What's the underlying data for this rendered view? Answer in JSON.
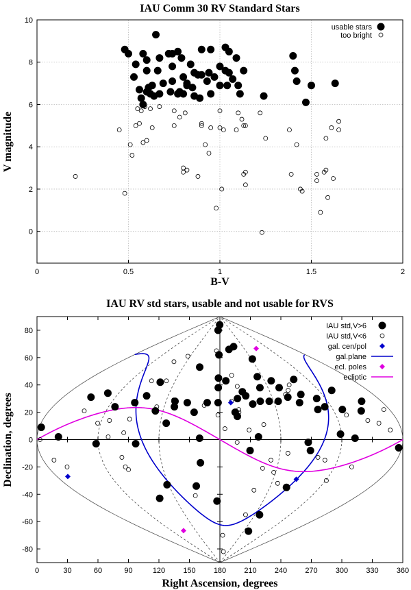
{
  "chart_data": [
    {
      "type": "scatter",
      "title": "IAU Comm 30 RV Standard Stars",
      "xlabel": "B-V",
      "ylabel": "V magnitude",
      "xlim": [
        0,
        2
      ],
      "ylim": [
        -1.5,
        10
      ],
      "xticks": [
        "0",
        "0.5",
        "1",
        "1.5",
        "2"
      ],
      "yticks": [
        "0",
        "2",
        "4",
        "6",
        "8",
        "10"
      ],
      "grid": true,
      "legend_position": "top-right",
      "series": [
        {
          "name": "usable stars",
          "marker": "filled-circle",
          "points": [
            [
              0.65,
              9.3
            ],
            [
              0.48,
              8.6
            ],
            [
              0.5,
              8.4
            ],
            [
              0.58,
              8.4
            ],
            [
              0.6,
              8.1
            ],
            [
              0.67,
              8.2
            ],
            [
              0.72,
              8.4
            ],
            [
              0.74,
              8.4
            ],
            [
              0.77,
              8.5
            ],
            [
              0.79,
              8.2
            ],
            [
              0.84,
              7.9
            ],
            [
              0.9,
              8.6
            ],
            [
              0.95,
              8.6
            ],
            [
              1.03,
              8.7
            ],
            [
              1.05,
              8.5
            ],
            [
              1.09,
              8.2
            ],
            [
              1.4,
              8.3
            ],
            [
              0.54,
              7.9
            ],
            [
              0.6,
              7.6
            ],
            [
              0.66,
              7.6
            ],
            [
              0.74,
              7.8
            ],
            [
              0.8,
              7.3
            ],
            [
              0.82,
              7.0
            ],
            [
              0.86,
              7.5
            ],
            [
              0.88,
              7.4
            ],
            [
              0.9,
              7.4
            ],
            [
              0.94,
              7.5
            ],
            [
              0.97,
              7.3
            ],
            [
              1.0,
              7.8
            ],
            [
              1.03,
              7.6
            ],
            [
              1.05,
              7.5
            ],
            [
              1.13,
              7.6
            ],
            [
              1.41,
              7.6
            ],
            [
              0.53,
              7.3
            ],
            [
              0.56,
              6.7
            ],
            [
              0.61,
              6.8
            ],
            [
              0.63,
              6.9
            ],
            [
              0.69,
              7.0
            ],
            [
              0.74,
              7.1
            ],
            [
              0.77,
              6.5
            ],
            [
              0.82,
              6.9
            ],
            [
              0.85,
              6.8
            ],
            [
              0.93,
              7.1
            ],
            [
              1.0,
              6.9
            ],
            [
              1.04,
              6.9
            ],
            [
              1.07,
              7.2
            ],
            [
              1.1,
              6.9
            ],
            [
              1.42,
              7.1
            ],
            [
              1.5,
              6.9
            ],
            [
              1.63,
              7.0
            ],
            [
              0.57,
              6.3
            ],
            [
              0.58,
              6.0
            ],
            [
              0.6,
              6.6
            ],
            [
              0.62,
              6.5
            ],
            [
              0.64,
              6.4
            ],
            [
              0.67,
              6.5
            ],
            [
              0.73,
              6.6
            ],
            [
              0.78,
              6.6
            ],
            [
              0.8,
              6.5
            ],
            [
              0.86,
              6.4
            ],
            [
              0.89,
              6.3
            ],
            [
              0.95,
              6.5
            ],
            [
              1.11,
              6.5
            ],
            [
              1.24,
              6.4
            ],
            [
              1.47,
              6.1
            ]
          ]
        },
        {
          "name": "too bright",
          "marker": "open-circle",
          "points": [
            [
              0.57,
              5.7
            ],
            [
              0.55,
              5.8
            ],
            [
              0.59,
              5.9
            ],
            [
              0.62,
              5.8
            ],
            [
              0.67,
              5.9
            ],
            [
              0.75,
              5.7
            ],
            [
              0.81,
              5.6
            ],
            [
              0.78,
              5.4
            ],
            [
              1.0,
              5.7
            ],
            [
              1.1,
              5.6
            ],
            [
              1.12,
              5.3
            ],
            [
              1.22,
              5.6
            ],
            [
              1.65,
              5.2
            ],
            [
              0.54,
              5.0
            ],
            [
              0.56,
              5.1
            ],
            [
              0.75,
              5.0
            ],
            [
              0.9,
              5.1
            ],
            [
              0.9,
              5.0
            ],
            [
              0.95,
              4.9
            ],
            [
              1.0,
              4.9
            ],
            [
              1.02,
              4.8
            ],
            [
              1.09,
              4.8
            ],
            [
              1.13,
              5.0
            ],
            [
              1.14,
              5.0
            ],
            [
              1.38,
              4.8
            ],
            [
              1.61,
              4.9
            ],
            [
              1.65,
              4.8
            ],
            [
              0.45,
              4.8
            ],
            [
              0.58,
              4.2
            ],
            [
              0.6,
              4.3
            ],
            [
              0.51,
              4.1
            ],
            [
              0.92,
              4.1
            ],
            [
              0.94,
              3.7
            ],
            [
              1.25,
              4.4
            ],
            [
              1.58,
              4.4
            ],
            [
              1.42,
              4.1
            ],
            [
              0.63,
              4.9
            ],
            [
              0.52,
              3.6
            ],
            [
              0.8,
              3.0
            ],
            [
              0.82,
              2.9
            ],
            [
              0.8,
              2.8
            ],
            [
              0.88,
              2.6
            ],
            [
              1.13,
              2.7
            ],
            [
              1.14,
              2.8
            ],
            [
              1.39,
              2.7
            ],
            [
              1.53,
              2.7
            ],
            [
              1.58,
              2.9
            ],
            [
              1.57,
              2.8
            ],
            [
              1.62,
              2.5
            ],
            [
              1.53,
              2.4
            ],
            [
              0.21,
              2.6
            ],
            [
              1.01,
              2.0
            ],
            [
              1.14,
              2.2
            ],
            [
              1.44,
              2.0
            ],
            [
              1.45,
              1.9
            ],
            [
              0.48,
              1.8
            ],
            [
              1.59,
              1.6
            ],
            [
              0.98,
              1.1
            ],
            [
              1.55,
              0.9
            ],
            [
              1.23,
              -0.05
            ]
          ]
        }
      ]
    },
    {
      "type": "scatter",
      "projection": "sinusoidal",
      "title": "IAU RV std stars, usable and not usable for RVS",
      "xlabel": "Right Ascension, degrees",
      "ylabel": "Declination, degrees",
      "xlim": [
        0,
        360
      ],
      "ylim": [
        -90,
        90
      ],
      "xticks": [
        "0",
        "30",
        "60",
        "90",
        "120",
        "150",
        "180",
        "210",
        "240",
        "270",
        "300",
        "330",
        "360"
      ],
      "yticks": [
        "-80",
        "-60",
        "-40",
        "-20",
        "0",
        "20",
        "40",
        "60",
        "80"
      ],
      "legend_position": "top-right",
      "series": [
        {
          "name": "IAU std,V>6",
          "marker": "filled-circle",
          "points": [
            [
              2,
              9
            ],
            [
              32,
              31
            ],
            [
              47,
              34
            ],
            [
              67,
              24
            ],
            [
              86,
              27
            ],
            [
              95,
              32
            ],
            [
              101,
              42
            ],
            [
              112,
              21
            ],
            [
              126,
              12
            ],
            [
              130,
              28
            ],
            [
              131,
              24
            ],
            [
              144,
              27
            ],
            [
              147,
              53
            ],
            [
              153,
              20
            ],
            [
              166,
              27
            ],
            [
              170,
              80
            ],
            [
              178,
              84
            ],
            [
              178,
              62
            ],
            [
              178,
              38
            ],
            [
              178,
              27
            ],
            [
              178,
              45
            ],
            [
              188,
              43
            ],
            [
              196,
              20
            ],
            [
              198,
              17
            ],
            [
              200,
              30
            ],
            [
              202,
              66
            ],
            [
              207,
              35
            ],
            [
              210,
              32
            ],
            [
              216,
              26
            ],
            [
              216,
              68
            ],
            [
              225,
              28
            ],
            [
              230,
              38
            ],
            [
              233,
              46
            ],
            [
              235,
              28
            ],
            [
              242,
              59
            ],
            [
              245,
              28
            ],
            [
              249,
              43
            ],
            [
              254,
              38
            ],
            [
              258,
              31
            ],
            [
              268,
              27
            ],
            [
              275,
              33
            ],
            [
              281,
              44
            ],
            [
              284,
              22
            ],
            [
              290,
              30
            ],
            [
              293,
              24
            ],
            [
              310,
              22
            ],
            [
              316,
              36
            ],
            [
              329,
              21
            ],
            [
              338,
              28
            ],
            [
              58,
              -3
            ],
            [
              99,
              -43
            ],
            [
              118,
              -33
            ],
            [
              152,
              -34
            ],
            [
              160,
              -17
            ],
            [
              176,
              -45
            ],
            [
              210,
              -8
            ],
            [
              248,
              -55
            ],
            [
              252,
              -67
            ],
            [
              260,
              -35
            ],
            [
              267,
              -2
            ],
            [
              21,
              2
            ],
            [
              97,
              -3
            ],
            [
              218,
              2
            ],
            [
              299,
              4
            ],
            [
              313,
              1
            ],
            [
              357,
              -6
            ],
            [
              160,
              1
            ],
            [
              270,
              -8
            ]
          ]
        },
        {
          "name": "IAU std,V<6",
          "marker": "open-circle",
          "points": [
            [
              3,
              0
            ],
            [
              11,
              -15
            ],
            [
              20,
              -20
            ],
            [
              37,
              21
            ],
            [
              57,
              12
            ],
            [
              68,
              14
            ],
            [
              70,
              2
            ],
            [
              85,
              5
            ],
            [
              88,
              15
            ],
            [
              88,
              43
            ],
            [
              81,
              -13
            ],
            [
              81,
              -20
            ],
            [
              83,
              -22
            ],
            [
              97,
              57
            ],
            [
              108,
              43
            ],
            [
              112,
              24
            ],
            [
              115,
              61
            ],
            [
              128,
              29
            ],
            [
              148,
              -41
            ],
            [
              163,
              25
            ],
            [
              172,
              65
            ],
            [
              178,
              18
            ],
            [
              185,
              8
            ],
            [
              188,
              -70
            ],
            [
              193,
              28
            ],
            [
              197,
              47
            ],
            [
              202,
              39
            ],
            [
              209,
              7
            ],
            [
              222,
              -37
            ],
            [
              224,
              -55
            ],
            [
              224,
              11
            ],
            [
              225,
              -21
            ],
            [
              232,
              -15
            ],
            [
              238,
              -24
            ],
            [
              247,
              -32
            ],
            [
              257,
              33
            ],
            [
              263,
              36
            ],
            [
              269,
              40
            ],
            [
              279,
              -13
            ],
            [
              287,
              -15
            ],
            [
              301,
              -30
            ],
            [
              311,
              18
            ],
            [
              318,
              -20
            ],
            [
              330,
              14
            ],
            [
              340,
              12
            ],
            [
              354,
              22
            ],
            [
              349,
              7
            ],
            [
              248,
              -10
            ],
            [
              205,
              -82
            ],
            [
              197,
              -2
            ],
            [
              200,
              20
            ],
            [
              200,
              22
            ]
          ]
        },
        {
          "name": "gal. cen/pol",
          "marker": "filled-diamond",
          "points": [
            [
              192,
              27
            ],
            [
              266,
              -29
            ],
            [
              12,
              -27
            ]
          ]
        },
        {
          "name": "gal.plane",
          "style": "line"
        },
        {
          "name": "ecl. poles",
          "marker": "filled-diamond",
          "points": [
            [
              270,
              66.6
            ],
            [
              90,
              -66.6
            ]
          ]
        },
        {
          "name": "ecliptic",
          "style": "line"
        }
      ]
    }
  ],
  "colors": {
    "galactic": "#0000cc",
    "ecliptic": "#e000e0",
    "markers": "#000000"
  }
}
